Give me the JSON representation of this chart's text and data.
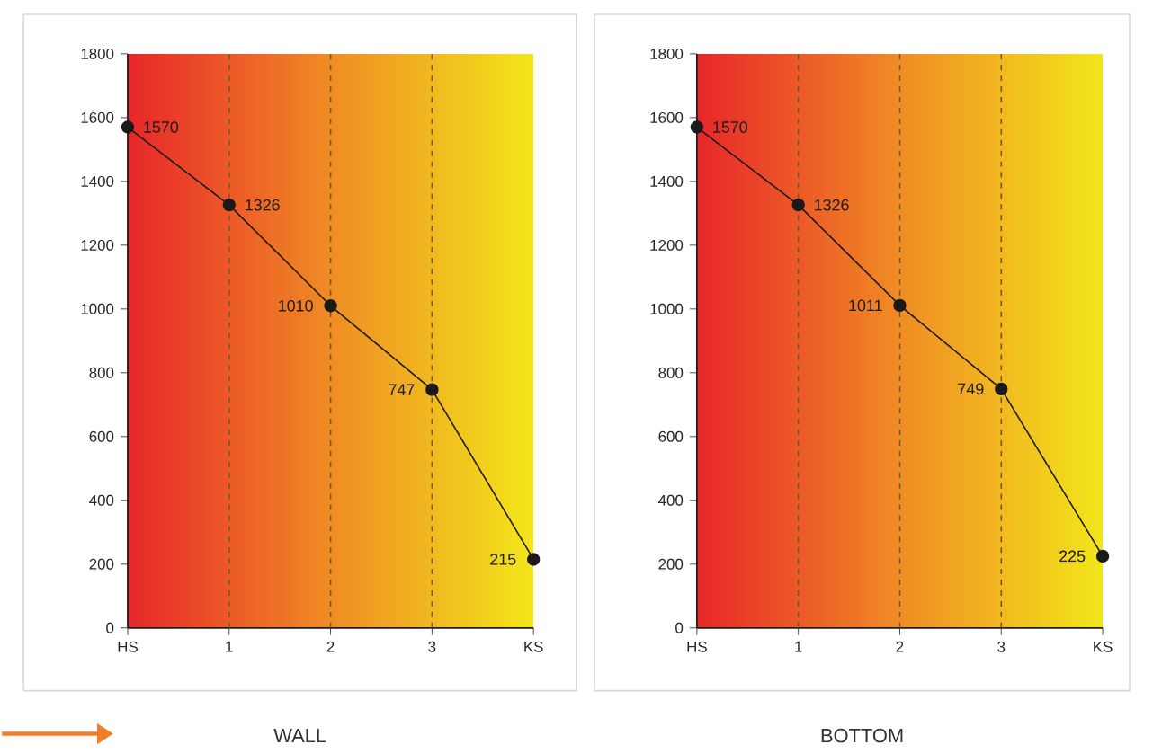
{
  "chart_data": [
    {
      "type": "line",
      "title": "WALL",
      "categories": [
        "HS",
        "1",
        "2",
        "3",
        "KS"
      ],
      "values": [
        1570,
        1326,
        1010,
        747,
        215
      ],
      "color": "#1a1a1a",
      "marker": "circle",
      "line_style": "solid",
      "data_labels": true,
      "ylim": [
        0,
        1800
      ],
      "yticks": [
        0,
        200,
        400,
        600,
        800,
        1000,
        1200,
        1400,
        1600,
        1800
      ],
      "grid": "x"
    },
    {
      "type": "line",
      "title": "BOTTOM",
      "categories": [
        "HS",
        "1",
        "2",
        "3",
        "KS"
      ],
      "values": [
        1570,
        1326,
        1011,
        749,
        225
      ],
      "color": "#1a1a1a",
      "marker": "circle",
      "line_style": "solid",
      "data_labels": true,
      "ylim": [
        0,
        1800
      ],
      "yticks": [
        0,
        200,
        400,
        600,
        800,
        1000,
        1200,
        1400,
        1600,
        1800
      ],
      "grid": "x"
    }
  ]
}
